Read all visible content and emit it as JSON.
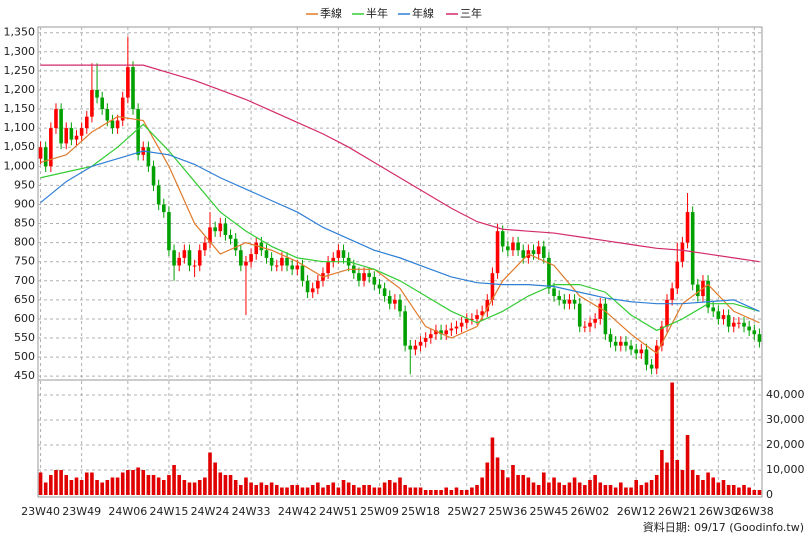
{
  "chart_data": {
    "type": "candlestick",
    "source": "資料日期: 09/17  (Goodinfo.tw)",
    "up_color": "#ff0000",
    "down_color": "#00a000",
    "volume_color": "#e00000",
    "grid": true,
    "ylim": [
      440,
      1365
    ],
    "yticks": [
      450,
      500,
      550,
      600,
      650,
      700,
      750,
      800,
      850,
      900,
      950,
      {
        "value": 1000,
        "label": "1,000"
      },
      {
        "value": 1050,
        "label": "1,050"
      },
      {
        "value": 1100,
        "label": "1,100"
      },
      {
        "value": 1150,
        "label": "1,150"
      },
      {
        "value": 1200,
        "label": "1,200"
      },
      {
        "value": 1250,
        "label": "1,250"
      },
      {
        "value": 1300,
        "label": "1,300"
      },
      {
        "value": 1350,
        "label": "1,350"
      }
    ],
    "y2lim": [
      0,
      46000
    ],
    "y2ticks": [
      0,
      {
        "value": 10000,
        "label": "10,000"
      },
      {
        "value": 20000,
        "label": "20,000"
      },
      {
        "value": 30000,
        "label": "30,000"
      },
      {
        "value": 40000,
        "label": "40,000"
      }
    ],
    "categories": [
      "23W40",
      null,
      null,
      null,
      null,
      null,
      null,
      null,
      "23W49",
      null,
      null,
      null,
      null,
      null,
      null,
      null,
      null,
      "24W06",
      null,
      null,
      null,
      null,
      null,
      null,
      null,
      "24W15",
      null,
      null,
      null,
      null,
      null,
      null,
      null,
      "24W24",
      null,
      null,
      null,
      null,
      null,
      null,
      null,
      "24W33",
      null,
      null,
      null,
      null,
      null,
      null,
      null,
      null,
      "24W42",
      null,
      null,
      null,
      null,
      null,
      null,
      null,
      "24W51",
      null,
      null,
      null,
      null,
      null,
      null,
      null,
      "25W09",
      null,
      null,
      null,
      null,
      null,
      null,
      null,
      "25W18",
      null,
      null,
      null,
      null,
      null,
      null,
      null,
      null,
      "25W27",
      null,
      null,
      null,
      null,
      null,
      null,
      null,
      "25W36",
      null,
      null,
      null,
      null,
      null,
      null,
      null,
      "25W45",
      null,
      null,
      null,
      null,
      null,
      null,
      null,
      "26W02",
      null,
      null,
      null,
      null,
      null,
      null,
      null,
      null,
      "26W12",
      null,
      null,
      null,
      null,
      null,
      null,
      null,
      "26W21",
      null,
      null,
      null,
      null,
      null,
      null,
      null,
      "26W30",
      null,
      null,
      null,
      null,
      null,
      null,
      "26W38",
      null
    ],
    "candles": [
      [
        1020,
        1065,
        1005,
        1050
      ],
      [
        1050,
        1065,
        985,
        1000
      ],
      [
        1000,
        1115,
        985,
        1100
      ],
      [
        1100,
        1165,
        1085,
        1150
      ],
      [
        1150,
        1165,
        1045,
        1060
      ],
      [
        1060,
        1115,
        1045,
        1100
      ],
      [
        1100,
        1115,
        1055,
        1070
      ],
      [
        1070,
        1095,
        1055,
        1080
      ],
      [
        1080,
        1115,
        1065,
        1100
      ],
      [
        1100,
        1145,
        1085,
        1130
      ],
      [
        1130,
        1270,
        1115,
        1200
      ],
      [
        1200,
        1270,
        1165,
        1180
      ],
      [
        1180,
        1195,
        1135,
        1150
      ],
      [
        1150,
        1165,
        1105,
        1120
      ],
      [
        1120,
        1135,
        1085,
        1100
      ],
      [
        1100,
        1135,
        1085,
        1120
      ],
      [
        1120,
        1195,
        1105,
        1180
      ],
      [
        1180,
        1340,
        1165,
        1260
      ],
      [
        1260,
        1275,
        1135,
        1150
      ],
      [
        1150,
        1165,
        1015,
        1030
      ],
      [
        1030,
        1065,
        1015,
        1050
      ],
      [
        1050,
        1065,
        985,
        1000
      ],
      [
        1000,
        1015,
        935,
        950
      ],
      [
        950,
        965,
        885,
        900
      ],
      [
        900,
        915,
        865,
        880
      ],
      [
        880,
        895,
        765,
        780
      ],
      [
        780,
        795,
        700,
        740
      ],
      [
        740,
        775,
        725,
        760
      ],
      [
        760,
        795,
        745,
        780
      ],
      [
        780,
        795,
        725,
        740
      ],
      [
        740,
        755,
        710,
        740
      ],
      [
        740,
        795,
        725,
        780
      ],
      [
        780,
        815,
        765,
        800
      ],
      [
        800,
        880,
        785,
        840
      ],
      [
        840,
        855,
        815,
        830
      ],
      [
        830,
        865,
        815,
        850
      ],
      [
        850,
        865,
        805,
        820
      ],
      [
        820,
        835,
        795,
        810
      ],
      [
        810,
        825,
        765,
        780
      ],
      [
        780,
        795,
        725,
        740
      ],
      [
        740,
        765,
        610,
        750
      ],
      [
        750,
        785,
        735,
        770
      ],
      [
        770,
        815,
        755,
        800
      ],
      [
        800,
        815,
        765,
        780
      ],
      [
        780,
        795,
        745,
        760
      ],
      [
        760,
        775,
        725,
        740
      ],
      [
        740,
        755,
        725,
        740
      ],
      [
        740,
        775,
        725,
        760
      ],
      [
        760,
        775,
        725,
        740
      ],
      [
        740,
        755,
        715,
        730
      ],
      [
        730,
        755,
        715,
        740
      ],
      [
        740,
        755,
        685,
        700
      ],
      [
        700,
        715,
        655,
        670
      ],
      [
        670,
        695,
        655,
        680
      ],
      [
        680,
        715,
        665,
        700
      ],
      [
        700,
        735,
        685,
        720
      ],
      [
        720,
        765,
        705,
        750
      ],
      [
        750,
        775,
        735,
        760
      ],
      [
        760,
        795,
        745,
        780
      ],
      [
        780,
        795,
        745,
        760
      ],
      [
        760,
        775,
        725,
        740
      ],
      [
        740,
        755,
        705,
        720
      ],
      [
        720,
        735,
        685,
        700
      ],
      [
        700,
        735,
        685,
        720
      ],
      [
        720,
        735,
        695,
        710
      ],
      [
        710,
        725,
        675,
        690
      ],
      [
        690,
        705,
        665,
        680
      ],
      [
        680,
        695,
        645,
        660
      ],
      [
        660,
        675,
        625,
        640
      ],
      [
        640,
        665,
        625,
        650
      ],
      [
        650,
        665,
        605,
        620
      ],
      [
        620,
        635,
        515,
        530
      ],
      [
        530,
        545,
        455,
        520
      ],
      [
        520,
        545,
        505,
        530
      ],
      [
        530,
        555,
        515,
        540
      ],
      [
        540,
        565,
        525,
        550
      ],
      [
        550,
        575,
        535,
        560
      ],
      [
        560,
        585,
        545,
        570
      ],
      [
        570,
        585,
        545,
        560
      ],
      [
        560,
        585,
        545,
        570
      ],
      [
        570,
        590,
        555,
        575
      ],
      [
        575,
        595,
        560,
        580
      ],
      [
        580,
        605,
        565,
        590
      ],
      [
        590,
        615,
        575,
        600
      ],
      [
        600,
        615,
        585,
        600
      ],
      [
        600,
        625,
        585,
        610
      ],
      [
        610,
        635,
        595,
        620
      ],
      [
        620,
        665,
        605,
        650
      ],
      [
        650,
        735,
        635,
        720
      ],
      [
        720,
        850,
        705,
        830
      ],
      [
        830,
        845,
        775,
        790
      ],
      [
        790,
        805,
        765,
        780
      ],
      [
        780,
        815,
        765,
        800
      ],
      [
        800,
        815,
        765,
        780
      ],
      [
        780,
        795,
        745,
        760
      ],
      [
        760,
        795,
        745,
        780
      ],
      [
        780,
        795,
        755,
        770
      ],
      [
        770,
        805,
        755,
        790
      ],
      [
        790,
        805,
        745,
        760
      ],
      [
        760,
        775,
        665,
        680
      ],
      [
        680,
        695,
        645,
        660
      ],
      [
        660,
        675,
        635,
        650
      ],
      [
        650,
        665,
        625,
        640
      ],
      [
        640,
        665,
        625,
        650
      ],
      [
        650,
        665,
        625,
        640
      ],
      [
        640,
        655,
        565,
        580
      ],
      [
        580,
        595,
        565,
        580
      ],
      [
        580,
        605,
        565,
        590
      ],
      [
        590,
        615,
        575,
        600
      ],
      [
        600,
        655,
        585,
        640
      ],
      [
        640,
        655,
        545,
        560
      ],
      [
        560,
        575,
        525,
        540
      ],
      [
        540,
        555,
        515,
        530
      ],
      [
        530,
        555,
        515,
        540
      ],
      [
        540,
        555,
        515,
        530
      ],
      [
        530,
        545,
        505,
        520
      ],
      [
        520,
        535,
        495,
        510
      ],
      [
        510,
        535,
        495,
        520
      ],
      [
        520,
        535,
        465,
        480
      ],
      [
        480,
        495,
        455,
        470
      ],
      [
        470,
        545,
        455,
        530
      ],
      [
        530,
        595,
        515,
        580
      ],
      [
        580,
        665,
        565,
        650
      ],
      [
        650,
        695,
        635,
        680
      ],
      [
        680,
        800,
        665,
        750
      ],
      [
        750,
        815,
        735,
        800
      ],
      [
        800,
        930,
        785,
        880
      ],
      [
        880,
        895,
        675,
        690
      ],
      [
        690,
        705,
        645,
        660
      ],
      [
        660,
        715,
        645,
        700
      ],
      [
        700,
        715,
        615,
        630
      ],
      [
        630,
        645,
        605,
        620
      ],
      [
        620,
        635,
        585,
        600
      ],
      [
        600,
        625,
        585,
        610
      ],
      [
        610,
        625,
        565,
        580
      ],
      [
        580,
        605,
        565,
        590
      ],
      [
        590,
        605,
        575,
        590
      ],
      [
        590,
        605,
        565,
        580
      ],
      [
        580,
        595,
        555,
        570
      ],
      [
        570,
        585,
        545,
        560
      ],
      [
        560,
        575,
        525,
        540
      ]
    ],
    "volume": [
      9000,
      5000,
      8000,
      10000,
      10000,
      8000,
      6000,
      7000,
      6000,
      9000,
      9000,
      6000,
      5000,
      6000,
      7000,
      7000,
      9000,
      10000,
      10000,
      11000,
      10000,
      8000,
      8000,
      7000,
      6000,
      8000,
      12000,
      8000,
      6000,
      5000,
      5000,
      6000,
      7000,
      17000,
      13000,
      9000,
      8000,
      8000,
      6000,
      4000,
      7000,
      5000,
      4000,
      5000,
      4000,
      5000,
      4000,
      3000,
      3000,
      4000,
      4000,
      3000,
      3000,
      4000,
      5000,
      3000,
      4000,
      5000,
      3000,
      6000,
      5000,
      4000,
      3000,
      4000,
      4000,
      3000,
      3000,
      5000,
      6000,
      5000,
      7000,
      4000,
      3000,
      3000,
      3000,
      2000,
      2000,
      2000,
      2000,
      3000,
      2000,
      3000,
      2000,
      2000,
      3000,
      4000,
      7000,
      13000,
      23000,
      15000,
      10000,
      7000,
      12000,
      8000,
      8000,
      7000,
      5000,
      4000,
      9000,
      5000,
      7000,
      5000,
      4000,
      5000,
      7000,
      5000,
      4000,
      6000,
      8000,
      5000,
      4000,
      4000,
      3000,
      5000,
      3000,
      3000,
      6000,
      4000,
      5000,
      6000,
      8000,
      18000,
      13000,
      45000,
      14000,
      10000,
      24000,
      10000,
      8000,
      6000,
      9000,
      7000,
      5000,
      6000,
      4000,
      4000,
      3000,
      4000,
      3000,
      2000,
      2000
    ],
    "series": [
      {
        "name": "季線",
        "color": "#e07a2a",
        "x": [
          0,
          5,
          10,
          15,
          20,
          25,
          30,
          35,
          40,
          45,
          50,
          55,
          60,
          65,
          70,
          75,
          80,
          85,
          90,
          95,
          100,
          105,
          110,
          115,
          120,
          125,
          130,
          135,
          140
        ],
        "values": [
          1010,
          1030,
          1090,
          1130,
          1120,
          1000,
          850,
          770,
          800,
          780,
          750,
          710,
          730,
          730,
          680,
          580,
          550,
          580,
          700,
          770,
          740,
          660,
          620,
          560,
          510,
          640,
          690,
          620,
          590
        ]
      },
      {
        "name": "半年",
        "color": "#33cc33",
        "x": [
          0,
          5,
          10,
          15,
          20,
          25,
          30,
          35,
          40,
          45,
          50,
          55,
          60,
          65,
          70,
          75,
          80,
          85,
          90,
          95,
          100,
          105,
          110,
          115,
          120,
          125,
          130,
          135,
          140
        ],
        "values": [
          970,
          985,
          1000,
          1050,
          1110,
          1040,
          960,
          880,
          830,
          790,
          760,
          750,
          750,
          730,
          700,
          660,
          620,
          590,
          620,
          660,
          690,
          690,
          670,
          610,
          570,
          600,
          640,
          640,
          620
        ]
      },
      {
        "name": "年線",
        "color": "#2f7fd6",
        "x": [
          0,
          5,
          10,
          15,
          20,
          25,
          30,
          35,
          40,
          45,
          50,
          55,
          60,
          65,
          70,
          75,
          80,
          85,
          90,
          95,
          100,
          105,
          110,
          115,
          120,
          125,
          130,
          135,
          140
        ],
        "values": [
          905,
          960,
          1000,
          1020,
          1040,
          1030,
          1005,
          970,
          940,
          910,
          880,
          840,
          810,
          780,
          760,
          735,
          710,
          695,
          690,
          690,
          685,
          670,
          655,
          645,
          640,
          640,
          645,
          650,
          620
        ]
      },
      {
        "name": "三年",
        "color": "#d42a6a",
        "x": [
          0,
          5,
          10,
          15,
          20,
          25,
          30,
          35,
          40,
          45,
          50,
          55,
          60,
          65,
          70,
          75,
          80,
          85,
          90,
          95,
          100,
          105,
          110,
          115,
          120,
          125,
          130,
          135,
          140
        ],
        "values": [
          1265,
          1265,
          1265,
          1265,
          1265,
          1245,
          1225,
          1200,
          1175,
          1145,
          1115,
          1085,
          1050,
          1010,
          970,
          930,
          890,
          855,
          835,
          830,
          825,
          815,
          805,
          795,
          785,
          780,
          770,
          760,
          750
        ]
      }
    ]
  }
}
